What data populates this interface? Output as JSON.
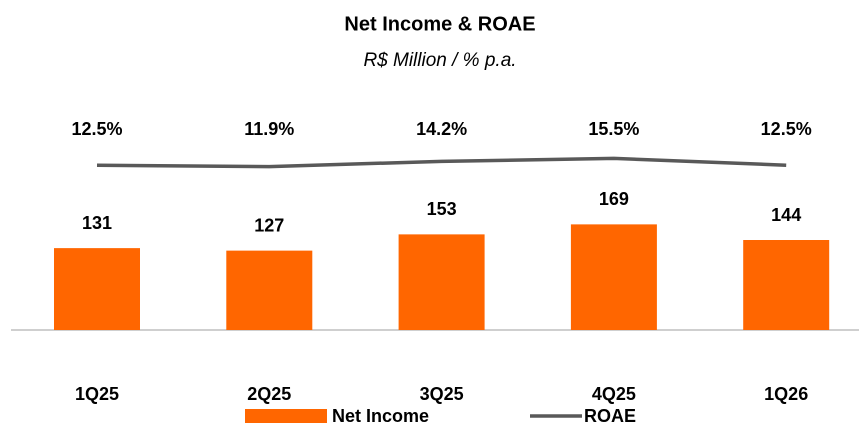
{
  "chart_data": {
    "type": "bar_line",
    "title": "Net Income & ROAE",
    "subtitle": "R$ Million / % p.a.",
    "categories": [
      "1Q25",
      "2Q25",
      "3Q25",
      "4Q25",
      "1Q26"
    ],
    "series": [
      {
        "name": "Net Income",
        "type": "bar",
        "color": "#ff6600",
        "values": [
          131,
          127,
          153,
          169,
          144
        ]
      },
      {
        "name": "ROAE",
        "type": "line",
        "axis": "y2",
        "color": "#595959",
        "values": [
          12.5,
          11.9,
          14.2,
          15.5,
          12.5
        ],
        "value_labels": [
          "12.5%",
          "11.9%",
          "14.2%",
          "15.5%",
          "12.5%"
        ]
      }
    ],
    "ylim": [
      0,
      400
    ],
    "y2lim": [
      -60,
      50
    ],
    "legend": "bottom"
  }
}
